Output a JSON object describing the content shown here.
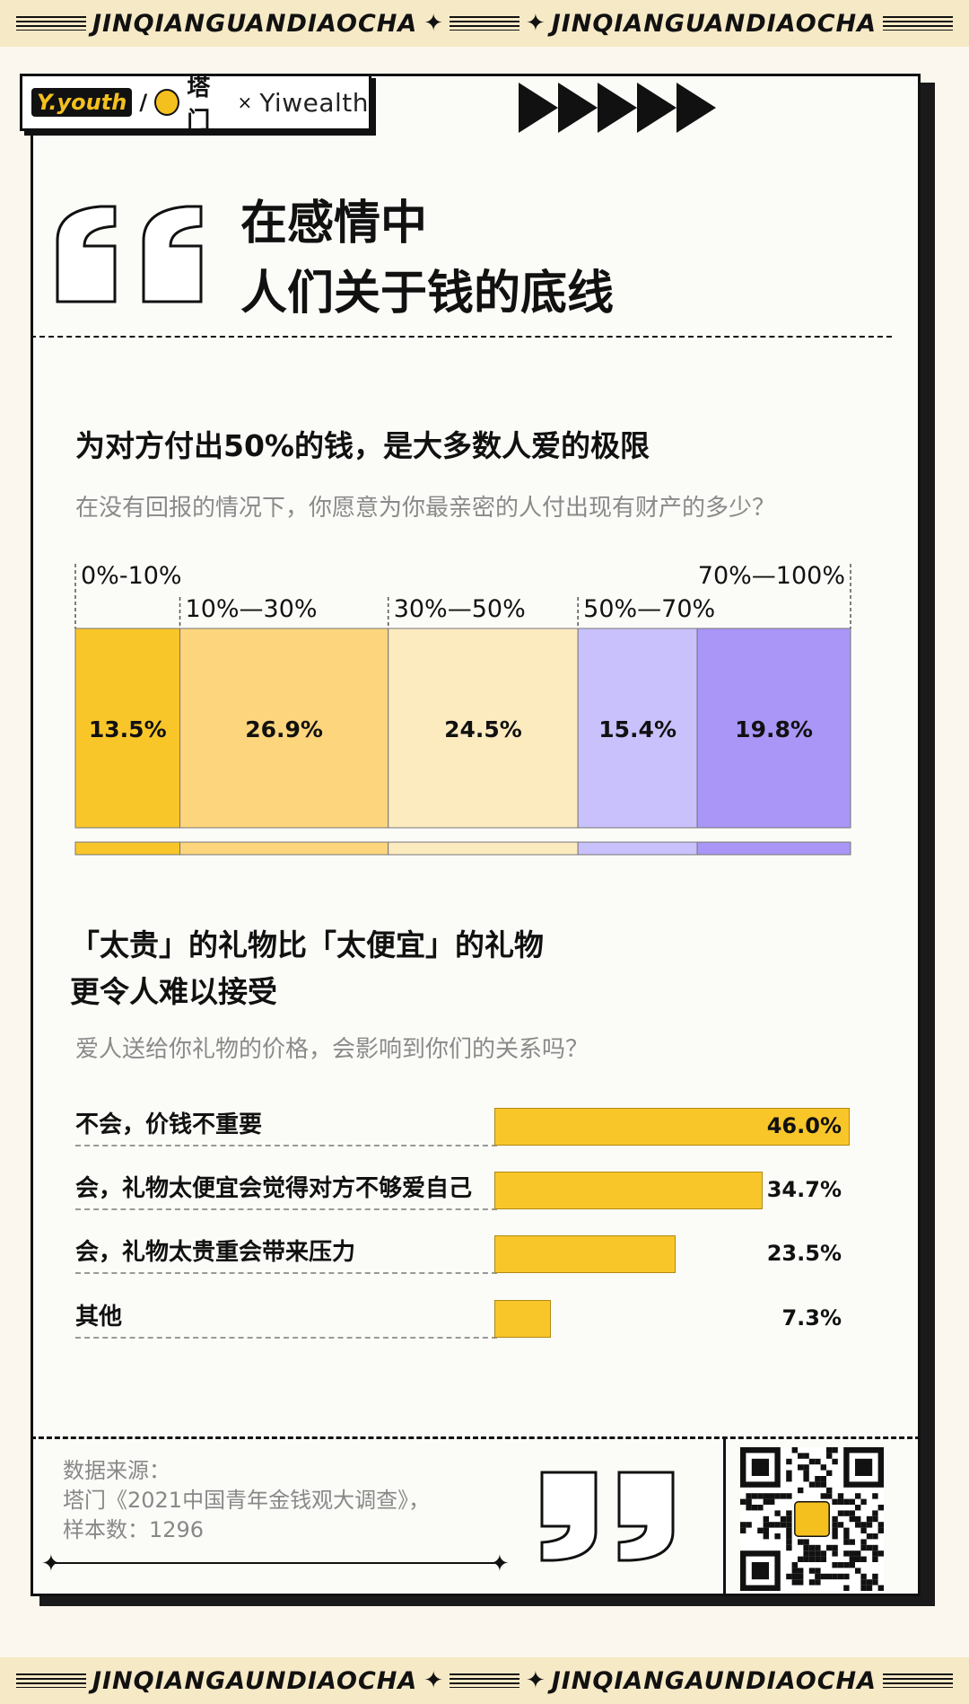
{
  "banner": {
    "text": "JINQIANGUANDIAOCHA"
  },
  "banner_bottom": {
    "text": "JINQIANGAUNDIAOCHA"
  },
  "logos": {
    "youth": "Y.youth",
    "tamen": "塔门",
    "x": "×",
    "yiwealth": "Yiwealth"
  },
  "headline": {
    "line1": "在感情中",
    "line2": "人们关于钱的底线"
  },
  "section1": {
    "title": "为对方付出50%的钱，是大多数人爱的极限",
    "subtitle": "在没有回报的情况下，你愿意为你最亲密的人付出现有财产的多少？"
  },
  "section2": {
    "title_line1": "「太贵」的礼物比「太便宜」的礼物",
    "title_line2": "更令人难以接受",
    "subtitle": "爱人送给你礼物的价格，会影响到你们的关系吗？"
  },
  "chart_data": [
    {
      "type": "bar",
      "orientation": "stacked-100",
      "categories": [
        "0%-10%",
        "10%—30%",
        "30%—50%",
        "50%—70%",
        "70%—100%"
      ],
      "values": [
        13.5,
        26.9,
        24.5,
        15.4,
        19.8
      ],
      "labels": [
        "13.5%",
        "26.9%",
        "24.5%",
        "15.4%",
        "19.8%"
      ],
      "colors": [
        "#f9c62a",
        "#fcd57d",
        "#fdebc0",
        "#c9c1fb",
        "#a996f6"
      ]
    },
    {
      "type": "bar",
      "orientation": "horizontal",
      "categories": [
        "不会，价钱不重要",
        "会，礼物太便宜会觉得对方不够爱自己",
        "会，礼物太贵重会带来压力",
        "其他"
      ],
      "values": [
        46.0,
        34.7,
        23.5,
        7.3
      ],
      "labels": [
        "46.0%",
        "34.7%",
        "23.5%",
        "7.3%"
      ],
      "xlim": [
        0,
        46.0
      ],
      "colors": [
        "#f9c62a"
      ]
    }
  ],
  "source": {
    "line1": "数据来源：",
    "line2": "塔门《2021中国青年金钱观大调查》，",
    "line3": "样本数：1296"
  }
}
